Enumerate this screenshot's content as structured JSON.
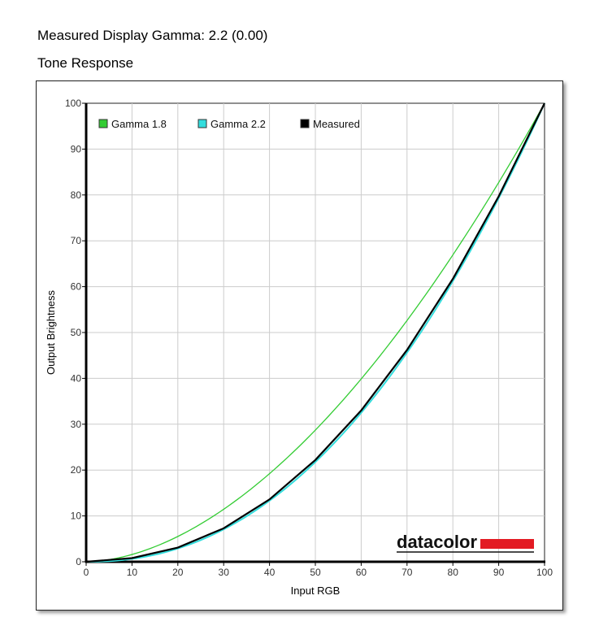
{
  "header": {
    "title": "Measured Display Gamma: 2.2 (0.00)",
    "subtitle": "Tone Response"
  },
  "logo": {
    "text": "datacolor",
    "color": "#e31b23"
  },
  "chart_data": {
    "type": "line",
    "xlabel": "Input RGB",
    "ylabel": "Output Brightness",
    "xlim": [
      0,
      100
    ],
    "ylim": [
      0,
      100
    ],
    "xticks": [
      "0",
      "10",
      "20",
      "30",
      "40",
      "50",
      "60",
      "70",
      "80",
      "90",
      "100"
    ],
    "yticks": [
      "0",
      "10",
      "20",
      "30",
      "40",
      "50",
      "60",
      "70",
      "80",
      "90",
      "100"
    ],
    "grid": true,
    "legend_position": "top-left",
    "x": [
      0,
      10,
      20,
      30,
      40,
      50,
      60,
      70,
      80,
      90,
      100
    ],
    "series": [
      {
        "name": "Gamma 1.8",
        "color": "#33cc33",
        "gamma": 1.8,
        "values": [
          0,
          1.6,
          5.5,
          11.5,
          19.2,
          28.7,
          39.9,
          52.6,
          66.9,
          82.7,
          100
        ]
      },
      {
        "name": "Gamma 2.2",
        "color": "#33dddd",
        "gamma": 2.2,
        "values": [
          0,
          0.6,
          2.9,
          7.1,
          13.3,
          21.8,
          32.5,
          45.6,
          61.2,
          79.3,
          100
        ]
      },
      {
        "name": "Measured",
        "color": "#000000",
        "values": [
          0,
          0.8,
          3.1,
          7.3,
          13.6,
          22.2,
          33.0,
          46.2,
          61.7,
          79.7,
          100
        ]
      }
    ]
  }
}
